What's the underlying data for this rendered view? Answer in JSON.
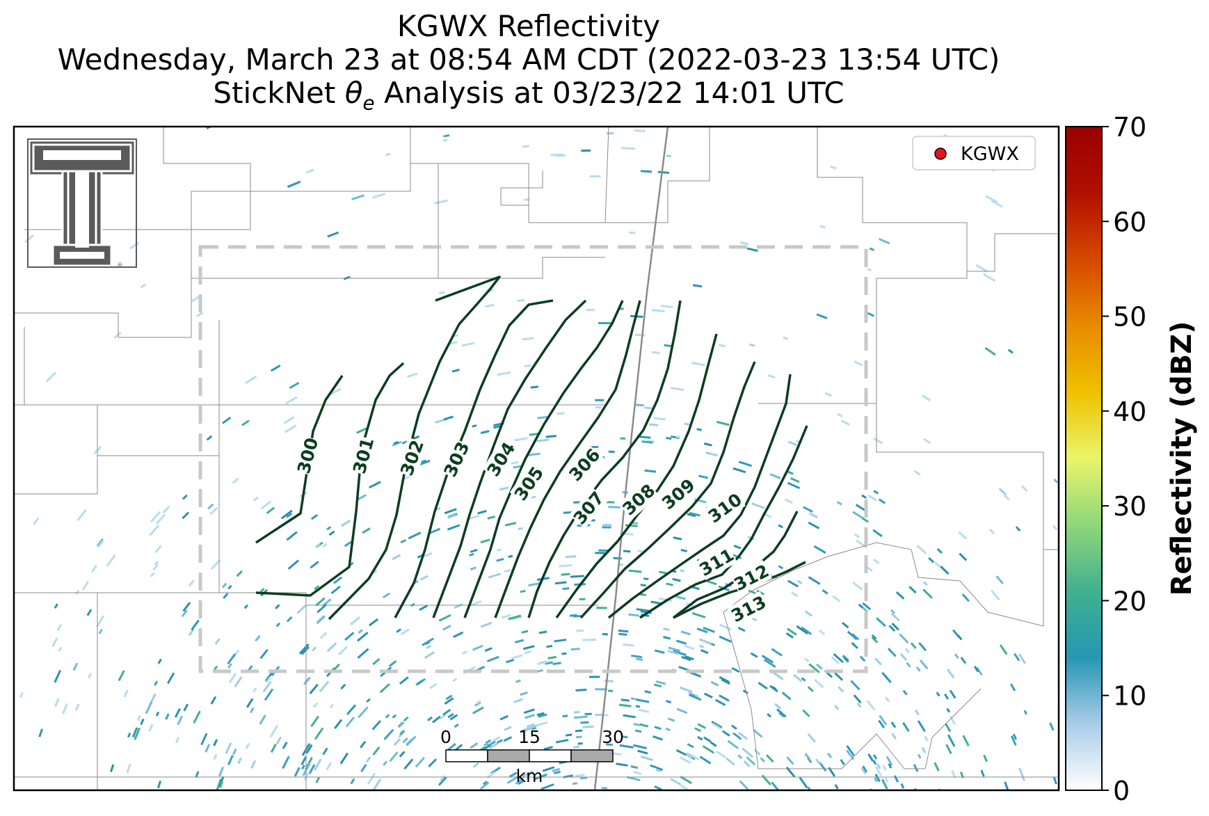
{
  "title": {
    "line1": "KGWX Reflectivity",
    "line2": "Wednesday, March 23 at 08:54 AM CDT (2022-03-23 13:54 UTC)",
    "line3_prefix": "StickNet ",
    "line3_symbol": "θ",
    "line3_subscript": "e",
    "line3_suffix": " Analysis at 03/23/22 14:01 UTC"
  },
  "legend": {
    "label": "KGWX",
    "marker_color": "#e8141c"
  },
  "logo": {
    "name": "Texas Tech double-T logo",
    "mark": "®"
  },
  "contours": {
    "color": "#0b3d1f",
    "levels": [
      "300",
      "301",
      "302",
      "303",
      "304",
      "305",
      "306",
      "307",
      "308",
      "309",
      "310",
      "311",
      "312",
      "313"
    ]
  },
  "scale_bar": {
    "ticks": [
      "0",
      "15",
      "30"
    ],
    "unit": "km"
  },
  "colorbar": {
    "label": "Reflectivity (dBZ)",
    "ticks": [
      "0",
      "10",
      "20",
      "30",
      "40",
      "50",
      "60",
      "70"
    ],
    "min": 0,
    "max": 70,
    "colors": [
      "#ffffff",
      "#a9cce8",
      "#2597b5",
      "#41b08e",
      "#8fd67a",
      "#eaf56a",
      "#f0c000",
      "#e88a00",
      "#d64800",
      "#b01000",
      "#9a0000"
    ]
  },
  "analysis_box": {
    "color": "#c8c8c8"
  },
  "county_lines": {
    "color": "#8a8a8a"
  }
}
